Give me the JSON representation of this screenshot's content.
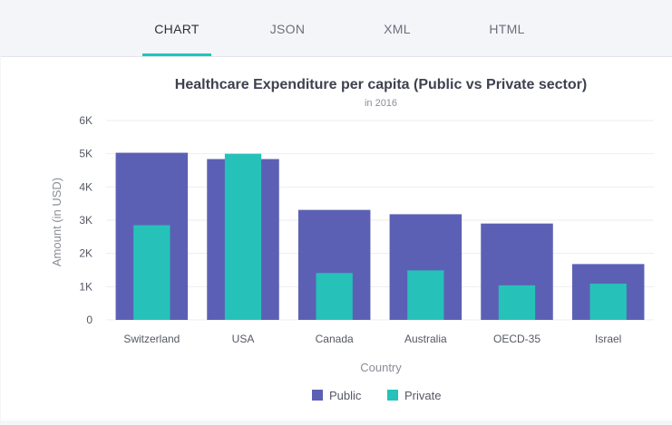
{
  "tabs": [
    {
      "label": "CHART",
      "active": true
    },
    {
      "label": "JSON",
      "active": false
    },
    {
      "label": "XML",
      "active": false
    },
    {
      "label": "HTML",
      "active": false
    }
  ],
  "colors": {
    "public": "#5c60b5",
    "private": "#26c2b9",
    "accent": "#1ec6b9"
  },
  "chart_data": {
    "type": "bar",
    "title": "Healthcare Expenditure per capita (Public vs Private sector)",
    "subtitle": "in 2016",
    "xlabel": "Country",
    "ylabel": "Amount (in USD)",
    "ylim": [
      0,
      6000
    ],
    "yticks": [
      "0",
      "1K",
      "2K",
      "3K",
      "4K",
      "5K",
      "6K"
    ],
    "categories": [
      "Switzerland",
      "USA",
      "Canada",
      "Australia",
      "OECD-35",
      "Israel"
    ],
    "series": [
      {
        "name": "Public",
        "values": [
          5030,
          4840,
          3310,
          3180,
          2900,
          1680
        ]
      },
      {
        "name": "Private",
        "values": [
          2850,
          5000,
          1410,
          1490,
          1040,
          1090
        ]
      }
    ],
    "grid": true,
    "legend_position": "bottom-center"
  }
}
